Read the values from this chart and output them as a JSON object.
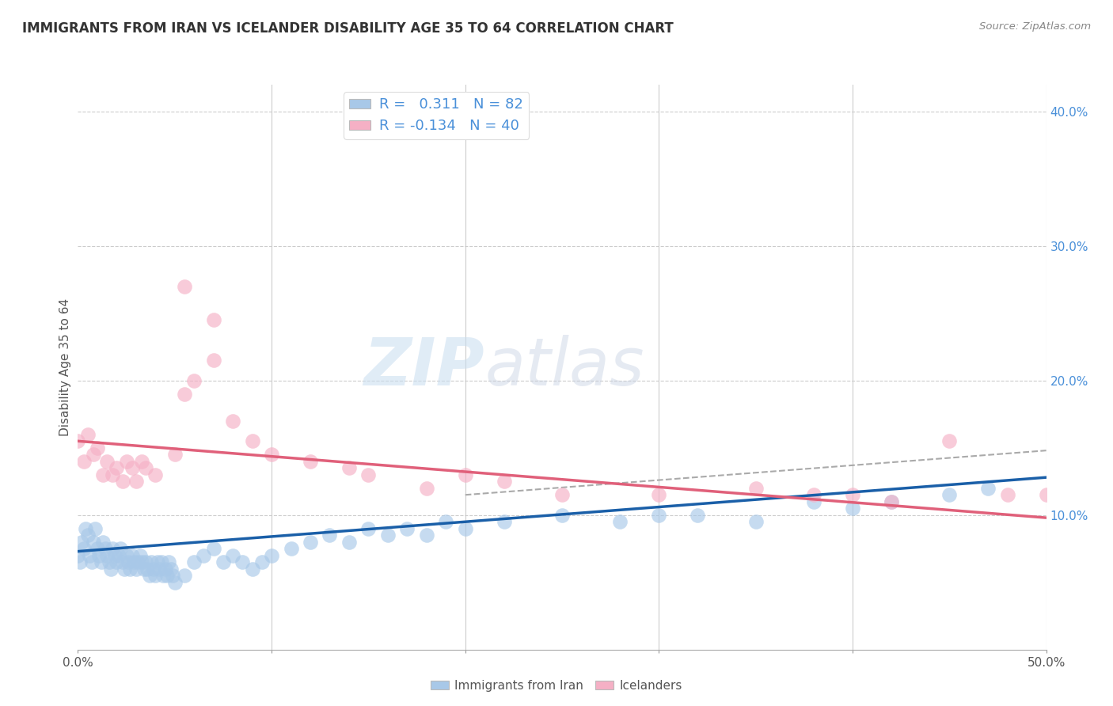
{
  "title": "IMMIGRANTS FROM IRAN VS ICELANDER DISABILITY AGE 35 TO 64 CORRELATION CHART",
  "source": "Source: ZipAtlas.com",
  "ylabel": "Disability Age 35 to 64",
  "xlim": [
    0.0,
    0.5
  ],
  "ylim": [
    0.0,
    0.42
  ],
  "y_ticks_right": [
    0.1,
    0.2,
    0.3,
    0.4
  ],
  "y_tick_labels_right": [
    "10.0%",
    "20.0%",
    "30.0%",
    "40.0%"
  ],
  "iran_color": "#a8c8e8",
  "iceland_color": "#f5b0c5",
  "iran_line_color": "#1a5fa8",
  "iceland_line_color": "#e0607a",
  "trend_line_color": "#aaaaaa",
  "iran_scatter_x": [
    0.0,
    0.001,
    0.002,
    0.003,
    0.004,
    0.005,
    0.006,
    0.007,
    0.008,
    0.009,
    0.01,
    0.011,
    0.012,
    0.013,
    0.014,
    0.015,
    0.016,
    0.017,
    0.018,
    0.019,
    0.02,
    0.021,
    0.022,
    0.023,
    0.024,
    0.025,
    0.026,
    0.027,
    0.028,
    0.029,
    0.03,
    0.031,
    0.032,
    0.033,
    0.034,
    0.035,
    0.036,
    0.037,
    0.038,
    0.039,
    0.04,
    0.041,
    0.042,
    0.043,
    0.044,
    0.045,
    0.046,
    0.047,
    0.048,
    0.049,
    0.05,
    0.055,
    0.06,
    0.065,
    0.07,
    0.075,
    0.08,
    0.085,
    0.09,
    0.095,
    0.1,
    0.11,
    0.12,
    0.13,
    0.14,
    0.15,
    0.16,
    0.17,
    0.18,
    0.19,
    0.2,
    0.22,
    0.25,
    0.28,
    0.3,
    0.32,
    0.35,
    0.38,
    0.4,
    0.42,
    0.45,
    0.47
  ],
  "iran_scatter_y": [
    0.07,
    0.065,
    0.08,
    0.075,
    0.09,
    0.085,
    0.07,
    0.065,
    0.08,
    0.09,
    0.075,
    0.07,
    0.065,
    0.08,
    0.075,
    0.07,
    0.065,
    0.06,
    0.075,
    0.07,
    0.065,
    0.07,
    0.075,
    0.065,
    0.06,
    0.07,
    0.065,
    0.06,
    0.07,
    0.065,
    0.06,
    0.065,
    0.07,
    0.065,
    0.06,
    0.065,
    0.06,
    0.055,
    0.065,
    0.06,
    0.055,
    0.065,
    0.06,
    0.065,
    0.055,
    0.06,
    0.055,
    0.065,
    0.06,
    0.055,
    0.05,
    0.055,
    0.065,
    0.07,
    0.075,
    0.065,
    0.07,
    0.065,
    0.06,
    0.065,
    0.07,
    0.075,
    0.08,
    0.085,
    0.08,
    0.09,
    0.085,
    0.09,
    0.085,
    0.095,
    0.09,
    0.095,
    0.1,
    0.095,
    0.1,
    0.1,
    0.095,
    0.11,
    0.105,
    0.11,
    0.115,
    0.12
  ],
  "iceland_scatter_x": [
    0.0,
    0.003,
    0.005,
    0.008,
    0.01,
    0.013,
    0.015,
    0.018,
    0.02,
    0.023,
    0.025,
    0.028,
    0.03,
    0.033,
    0.035,
    0.04,
    0.05,
    0.055,
    0.06,
    0.07,
    0.08,
    0.09,
    0.1,
    0.12,
    0.14,
    0.15,
    0.18,
    0.2,
    0.22,
    0.25,
    0.3,
    0.35,
    0.38,
    0.4,
    0.42,
    0.45,
    0.48,
    0.5,
    0.055,
    0.07
  ],
  "iceland_scatter_y": [
    0.155,
    0.14,
    0.16,
    0.145,
    0.15,
    0.13,
    0.14,
    0.13,
    0.135,
    0.125,
    0.14,
    0.135,
    0.125,
    0.14,
    0.135,
    0.13,
    0.145,
    0.19,
    0.2,
    0.215,
    0.17,
    0.155,
    0.145,
    0.14,
    0.135,
    0.13,
    0.12,
    0.13,
    0.125,
    0.115,
    0.115,
    0.12,
    0.115,
    0.115,
    0.11,
    0.155,
    0.115,
    0.115,
    0.27,
    0.245
  ],
  "watermark_zip": "ZIP",
  "watermark_atlas": "atlas",
  "background_color": "#ffffff",
  "grid_color": "#cccccc",
  "iran_line_x0": 0.0,
  "iran_line_y0": 0.073,
  "iran_line_x1": 0.5,
  "iran_line_y1": 0.128,
  "iceland_line_x0": 0.0,
  "iceland_line_y0": 0.155,
  "iceland_line_x1": 0.5,
  "iceland_line_y1": 0.098,
  "dash_line_x0": 0.2,
  "dash_line_y0": 0.115,
  "dash_line_x1": 0.5,
  "dash_line_y1": 0.148
}
